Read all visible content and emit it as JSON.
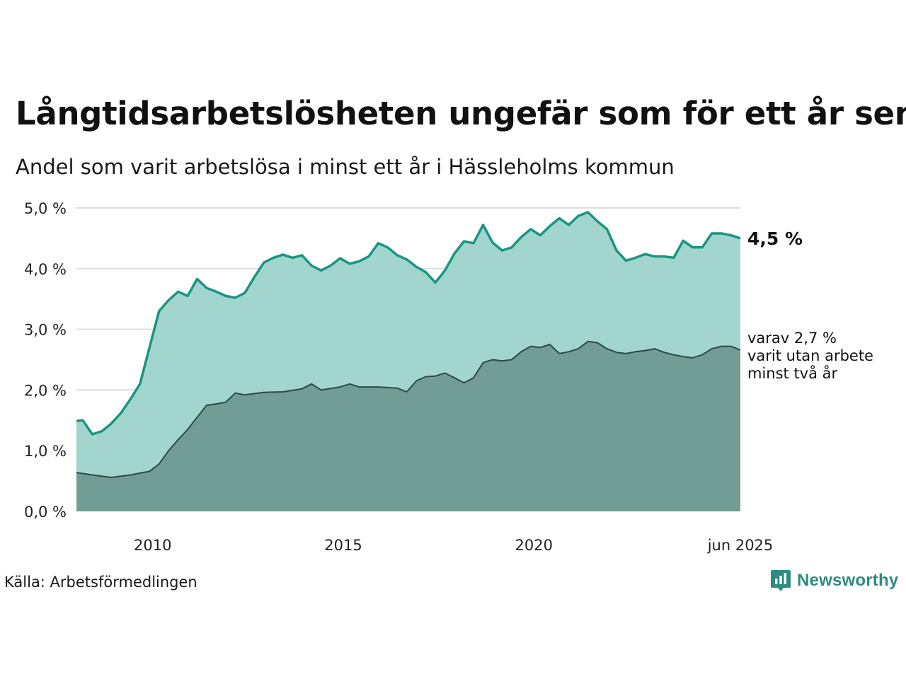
{
  "title": "Långtidsarbetslösheten ungefär som för ett år sen",
  "subtitle": "Andel som varit arbetslösa i minst ett år i Hässleholms kommun",
  "source": "Källa: Arbetsförmedlingen",
  "brand": {
    "name": "Newsworthy",
    "icon": "newsworthy-logo-icon"
  },
  "colors": {
    "total_line": "#1a9582",
    "total_fill": "#a3d5cf",
    "long_fill": "#729d95",
    "long_line": "#2c4a45",
    "grid": "#dddddd"
  },
  "chart_data": {
    "type": "area",
    "title": "Långtidsarbetslösheten ungefär som för ett år sen",
    "subtitle": "Andel som varit arbetslösa i minst ett år i Hässleholms kommun",
    "xlabel": "",
    "ylabel": "",
    "x_range": [
      "2008-01",
      "2025-06"
    ],
    "ylim": [
      0,
      5
    ],
    "yticks": [
      0,
      1,
      2,
      3,
      4,
      5
    ],
    "ytick_labels": [
      "0,0 %",
      "1,0 %",
      "2,0 %",
      "3,0 %",
      "4,0 %",
      "5,0 %"
    ],
    "xticks": [
      "2010-01",
      "2015-01",
      "2020-01",
      "2025-06"
    ],
    "xtick_labels": [
      "2010",
      "2015",
      "2020",
      "jun 2025"
    ],
    "grid": true,
    "legend": "none",
    "series": [
      {
        "name": "",
        "end_label": "4,5 %",
        "points": [
          [
            "2008-01",
            1.49
          ],
          [
            "2008-03",
            1.5
          ],
          [
            "2008-06",
            1.27
          ],
          [
            "2008-09",
            1.32
          ],
          [
            "2008-12",
            1.45
          ],
          [
            "2009-03",
            1.62
          ],
          [
            "2009-06",
            1.85
          ],
          [
            "2009-09",
            2.1
          ],
          [
            "2009-12",
            2.7
          ],
          [
            "2010-03",
            3.3
          ],
          [
            "2010-06",
            3.48
          ],
          [
            "2010-09",
            3.62
          ],
          [
            "2010-12",
            3.55
          ],
          [
            "2011-03",
            3.83
          ],
          [
            "2011-06",
            3.68
          ],
          [
            "2011-09",
            3.62
          ],
          [
            "2011-12",
            3.55
          ],
          [
            "2012-03",
            3.52
          ],
          [
            "2012-06",
            3.6
          ],
          [
            "2012-09",
            3.86
          ],
          [
            "2012-12",
            4.1
          ],
          [
            "2013-03",
            4.18
          ],
          [
            "2013-06",
            4.23
          ],
          [
            "2013-09",
            4.18
          ],
          [
            "2013-12",
            4.22
          ],
          [
            "2014-03",
            4.05
          ],
          [
            "2014-06",
            3.97
          ],
          [
            "2014-09",
            4.05
          ],
          [
            "2014-12",
            4.17
          ],
          [
            "2015-03",
            4.08
          ],
          [
            "2015-06",
            4.12
          ],
          [
            "2015-09",
            4.2
          ],
          [
            "2015-12",
            4.42
          ],
          [
            "2016-03",
            4.35
          ],
          [
            "2016-06",
            4.22
          ],
          [
            "2016-09",
            4.15
          ],
          [
            "2016-12",
            4.03
          ],
          [
            "2017-03",
            3.94
          ],
          [
            "2017-06",
            3.77
          ],
          [
            "2017-09",
            3.97
          ],
          [
            "2017-12",
            4.25
          ],
          [
            "2018-03",
            4.45
          ],
          [
            "2018-06",
            4.42
          ],
          [
            "2018-09",
            4.72
          ],
          [
            "2018-12",
            4.43
          ],
          [
            "2019-03",
            4.3
          ],
          [
            "2019-06",
            4.35
          ],
          [
            "2019-09",
            4.52
          ],
          [
            "2019-12",
            4.65
          ],
          [
            "2020-03",
            4.55
          ],
          [
            "2020-06",
            4.7
          ],
          [
            "2020-09",
            4.83
          ],
          [
            "2020-12",
            4.72
          ],
          [
            "2021-03",
            4.87
          ],
          [
            "2021-06",
            4.93
          ],
          [
            "2021-09",
            4.78
          ],
          [
            "2021-12",
            4.65
          ],
          [
            "2022-03",
            4.3
          ],
          [
            "2022-06",
            4.13
          ],
          [
            "2022-09",
            4.18
          ],
          [
            "2022-12",
            4.24
          ],
          [
            "2023-03",
            4.2
          ],
          [
            "2023-06",
            4.2
          ],
          [
            "2023-09",
            4.18
          ],
          [
            "2023-12",
            4.46
          ],
          [
            "2024-03",
            4.35
          ],
          [
            "2024-06",
            4.35
          ],
          [
            "2024-09",
            4.58
          ],
          [
            "2024-12",
            4.58
          ],
          [
            "2025-03",
            4.55
          ],
          [
            "2025-06",
            4.5
          ]
        ]
      },
      {
        "name": "",
        "end_label": [
          "varav 2,7 %",
          "varit utan arbete",
          "minst två år"
        ],
        "points": [
          [
            "2008-01",
            0.64
          ],
          [
            "2008-06",
            0.6
          ],
          [
            "2008-12",
            0.56
          ],
          [
            "2009-06",
            0.6
          ],
          [
            "2009-12",
            0.66
          ],
          [
            "2010-03",
            0.78
          ],
          [
            "2010-06",
            1.0
          ],
          [
            "2010-09",
            1.18
          ],
          [
            "2010-12",
            1.35
          ],
          [
            "2011-03",
            1.55
          ],
          [
            "2011-06",
            1.75
          ],
          [
            "2011-09",
            1.77
          ],
          [
            "2011-12",
            1.8
          ],
          [
            "2012-03",
            1.95
          ],
          [
            "2012-06",
            1.92
          ],
          [
            "2012-12",
            1.96
          ],
          [
            "2013-06",
            1.97
          ],
          [
            "2013-12",
            2.02
          ],
          [
            "2014-03",
            2.1
          ],
          [
            "2014-06",
            2.0
          ],
          [
            "2014-12",
            2.05
          ],
          [
            "2015-03",
            2.1
          ],
          [
            "2015-06",
            2.05
          ],
          [
            "2015-12",
            2.05
          ],
          [
            "2016-06",
            2.03
          ],
          [
            "2016-09",
            1.97
          ],
          [
            "2016-12",
            2.15
          ],
          [
            "2017-03",
            2.22
          ],
          [
            "2017-06",
            2.23
          ],
          [
            "2017-09",
            2.28
          ],
          [
            "2017-12",
            2.2
          ],
          [
            "2018-03",
            2.12
          ],
          [
            "2018-06",
            2.2
          ],
          [
            "2018-09",
            2.45
          ],
          [
            "2018-12",
            2.5
          ],
          [
            "2019-03",
            2.48
          ],
          [
            "2019-06",
            2.5
          ],
          [
            "2019-09",
            2.63
          ],
          [
            "2019-12",
            2.72
          ],
          [
            "2020-03",
            2.7
          ],
          [
            "2020-06",
            2.75
          ],
          [
            "2020-09",
            2.6
          ],
          [
            "2020-12",
            2.63
          ],
          [
            "2021-03",
            2.68
          ],
          [
            "2021-06",
            2.8
          ],
          [
            "2021-09",
            2.78
          ],
          [
            "2021-12",
            2.68
          ],
          [
            "2022-03",
            2.62
          ],
          [
            "2022-06",
            2.6
          ],
          [
            "2022-09",
            2.63
          ],
          [
            "2022-12",
            2.65
          ],
          [
            "2023-03",
            2.68
          ],
          [
            "2023-06",
            2.62
          ],
          [
            "2023-09",
            2.58
          ],
          [
            "2023-12",
            2.55
          ],
          [
            "2024-03",
            2.53
          ],
          [
            "2024-06",
            2.58
          ],
          [
            "2024-09",
            2.68
          ],
          [
            "2024-12",
            2.72
          ],
          [
            "2025-03",
            2.72
          ],
          [
            "2025-06",
            2.66
          ]
        ]
      }
    ]
  }
}
